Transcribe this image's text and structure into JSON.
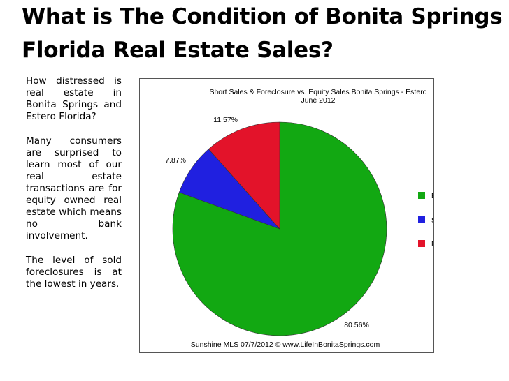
{
  "slide": {
    "title": "What is The Condition of Bonita Springs Florida Real Estate Sales?",
    "paragraphs": [
      "How distressed is real estate in Bonita Springs and Estero Florida?",
      "Many consumers are surprised to learn most of our real estate transactions are for equity owned real estate which means no bank involvement.",
      "The level of sold foreclosures is at the lowest in years."
    ]
  },
  "chart_data": {
    "type": "pie",
    "title": "Short Sales & Foreclosure vs. Equity Sales Bonita Springs - Estero",
    "subtitle": "June 2012",
    "source": "Sunshine MLS 07/7/2012  ©  www.LifeInBonitaSprings.com",
    "legend_position": "right",
    "slices": [
      {
        "label": "Equity Sales",
        "value": 80.56,
        "value_label": "80.56%",
        "color": "#12a812"
      },
      {
        "label": "Short Sale",
        "value": 7.87,
        "value_label": "7.87%",
        "color": "#2020e0"
      },
      {
        "label": "Foreclosure",
        "value": 11.57,
        "value_label": "11.57%",
        "color": "#e3132a"
      }
    ]
  }
}
